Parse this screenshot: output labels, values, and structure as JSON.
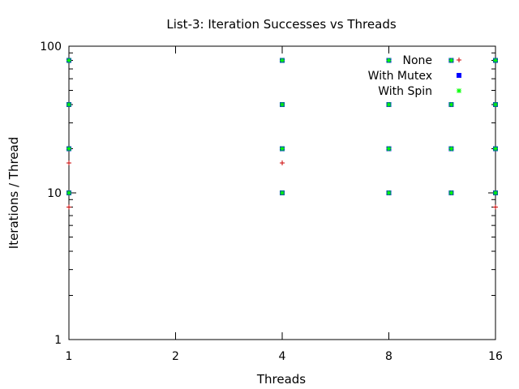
{
  "chart_data": {
    "type": "scatter",
    "title": "List-3: Iteration Successes vs Threads",
    "xlabel": "Threads",
    "ylabel": "Iterations / Thread",
    "xscale": "log",
    "yscale": "log",
    "xlim": [
      1,
      16
    ],
    "ylim": [
      1,
      100
    ],
    "x_ticks": [
      1,
      2,
      4,
      8,
      16
    ],
    "y_ticks": [
      1,
      10,
      100
    ],
    "legend_position": "top-right",
    "grid": false,
    "series": [
      {
        "name": "None",
        "marker": "plus",
        "color": "#cc0000",
        "points": [
          [
            1,
            8
          ],
          [
            1,
            10
          ],
          [
            1,
            16
          ],
          [
            1,
            20
          ],
          [
            1,
            40
          ],
          [
            1,
            80
          ],
          [
            4,
            10
          ],
          [
            4,
            16
          ],
          [
            4,
            20
          ],
          [
            4,
            40
          ],
          [
            4,
            80
          ],
          [
            8,
            10
          ],
          [
            8,
            20
          ],
          [
            8,
            40
          ],
          [
            8,
            80
          ],
          [
            12,
            10
          ],
          [
            12,
            20
          ],
          [
            12,
            40
          ],
          [
            12,
            80
          ],
          [
            16,
            8
          ],
          [
            16,
            10
          ],
          [
            16,
            20
          ],
          [
            16,
            40
          ],
          [
            16,
            80
          ]
        ]
      },
      {
        "name": "With Mutex",
        "marker": "square",
        "color": "#0000ff",
        "points": [
          [
            1,
            10
          ],
          [
            1,
            20
          ],
          [
            1,
            40
          ],
          [
            1,
            80
          ],
          [
            4,
            10
          ],
          [
            4,
            20
          ],
          [
            4,
            40
          ],
          [
            4,
            80
          ],
          [
            8,
            10
          ],
          [
            8,
            20
          ],
          [
            8,
            40
          ],
          [
            8,
            80
          ],
          [
            12,
            10
          ],
          [
            12,
            20
          ],
          [
            12,
            40
          ],
          [
            12,
            80
          ],
          [
            16,
            10
          ],
          [
            16,
            20
          ],
          [
            16,
            40
          ],
          [
            16,
            80
          ]
        ]
      },
      {
        "name": "With Spin",
        "marker": "star",
        "color": "#00ff00",
        "points": [
          [
            1,
            10
          ],
          [
            1,
            20
          ],
          [
            1,
            40
          ],
          [
            1,
            80
          ],
          [
            4,
            10
          ],
          [
            4,
            20
          ],
          [
            4,
            40
          ],
          [
            4,
            80
          ],
          [
            8,
            10
          ],
          [
            8,
            20
          ],
          [
            8,
            40
          ],
          [
            8,
            80
          ],
          [
            12,
            10
          ],
          [
            12,
            20
          ],
          [
            12,
            40
          ],
          [
            12,
            80
          ],
          [
            16,
            10
          ],
          [
            16,
            20
          ],
          [
            16,
            40
          ],
          [
            16,
            80
          ]
        ]
      }
    ]
  }
}
